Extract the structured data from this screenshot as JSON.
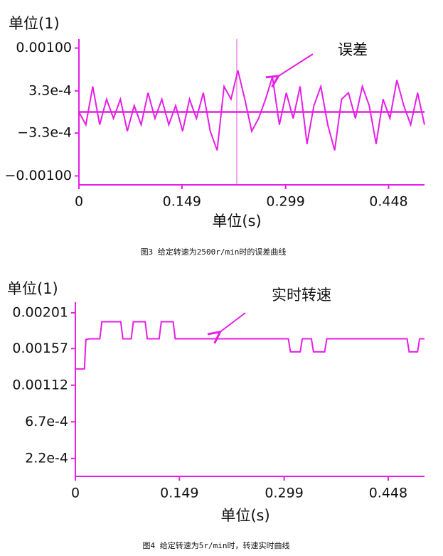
{
  "chart_data": [
    {
      "type": "line",
      "y_label": "单位(1)",
      "x_label": "单位(s)",
      "annotation": "误差",
      "caption": "图3 给定转速为2500r/min时的误差曲线",
      "color": "#e61ee6",
      "xlim": [
        0,
        0.5
      ],
      "xticks": [
        0,
        0.149,
        0.299,
        0.448
      ],
      "ylim": [
        -0.00114,
        0.00114
      ],
      "yticks": [
        {
          "value": 0.001,
          "label": "0.00100"
        },
        {
          "value": 0.00033,
          "label": "3.3e-4"
        },
        {
          "value": -0.00033,
          "label": "−3.3e-4"
        },
        {
          "value": -0.001,
          "label": "−0.00100"
        }
      ],
      "x": [
        0,
        0.01,
        0.02,
        0.03,
        0.04,
        0.05,
        0.06,
        0.07,
        0.08,
        0.09,
        0.1,
        0.11,
        0.12,
        0.13,
        0.14,
        0.15,
        0.16,
        0.17,
        0.18,
        0.19,
        0.2,
        0.21,
        0.22,
        0.23,
        0.24,
        0.25,
        0.26,
        0.27,
        0.28,
        0.29,
        0.3,
        0.31,
        0.32,
        0.33,
        0.34,
        0.35,
        0.36,
        0.37,
        0.38,
        0.39,
        0.4,
        0.41,
        0.42,
        0.43,
        0.44,
        0.45,
        0.46,
        0.47,
        0.48,
        0.49,
        0.5
      ],
      "values": [
        0,
        -0.0002,
        0.0004,
        -0.0002,
        0.0002,
        -0.0001,
        0.0002,
        -0.0003,
        0.0001,
        -0.0002,
        0.0003,
        -0.0001,
        0.0002,
        -0.0002,
        0.0001,
        -0.0003,
        0.0002,
        -0.0001,
        0.0003,
        -0.0003,
        -0.0006,
        0.0004,
        0.0002,
        0.00065,
        0.0002,
        -0.0003,
        -0.0001,
        0.0002,
        0.00055,
        -0.0002,
        0.0003,
        -0.0001,
        0.0004,
        -0.0005,
        0.0001,
        0.0004,
        -0.0002,
        -0.0006,
        0.0002,
        0.0003,
        -0.0001,
        0.0004,
        0.0001,
        -0.0005,
        0.0002,
        -0.0001,
        0.0005,
        0.0001,
        -0.0002,
        0.0003,
        -0.0002
      ]
    },
    {
      "type": "line",
      "y_label": "单位(1)",
      "x_label": "单位(s)",
      "annotation": "实时转速",
      "caption": "图4 给定转速为5r/min时，转速实时曲线",
      "color": "#e61ee6",
      "xlim": [
        0,
        0.5
      ],
      "xticks": [
        0,
        0.149,
        0.299,
        0.448
      ],
      "ylim": [
        0,
        0.00214
      ],
      "yticks": [
        0.00201,
        0.00157,
        0.00112,
        {
          "value": 0.00067,
          "label": "6.7e-4"
        },
        {
          "value": 0.00022,
          "label": "2.2e-4"
        }
      ],
      "x": [
        0,
        0.013,
        0.015,
        0.02,
        0.035,
        0.038,
        0.065,
        0.068,
        0.08,
        0.083,
        0.1,
        0.103,
        0.12,
        0.123,
        0.14,
        0.143,
        0.305,
        0.308,
        0.322,
        0.325,
        0.338,
        0.341,
        0.357,
        0.36,
        0.475,
        0.478,
        0.49,
        0.493,
        0.5
      ],
      "values": [
        0.00132,
        0.00132,
        0.00168,
        0.00169,
        0.00169,
        0.0019,
        0.0019,
        0.00169,
        0.00169,
        0.0019,
        0.0019,
        0.00169,
        0.00169,
        0.0019,
        0.0019,
        0.00169,
        0.00169,
        0.00153,
        0.00153,
        0.00169,
        0.00169,
        0.00153,
        0.00153,
        0.00169,
        0.00169,
        0.00153,
        0.00153,
        0.00169,
        0.00169
      ]
    }
  ]
}
